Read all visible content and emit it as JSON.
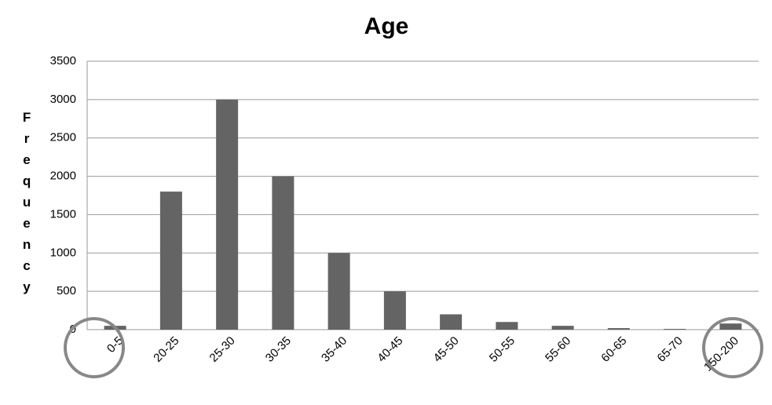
{
  "chart_data": {
    "type": "bar",
    "title": "Age",
    "y_label": "Frequency",
    "categories": [
      "0-5",
      "20-25",
      "25-30",
      "30-35",
      "35-40",
      "40-45",
      "45-50",
      "50-55",
      "55-60",
      "60-65",
      "65-70",
      "150-200"
    ],
    "values": [
      50,
      1800,
      3000,
      2000,
      1000,
      500,
      200,
      100,
      50,
      20,
      10,
      80
    ],
    "color": "#646464",
    "ylim": [
      0,
      3500
    ],
    "yticks": [
      0,
      500,
      1000,
      1500,
      2000,
      2500,
      3000,
      3500
    ],
    "grid": true
  }
}
